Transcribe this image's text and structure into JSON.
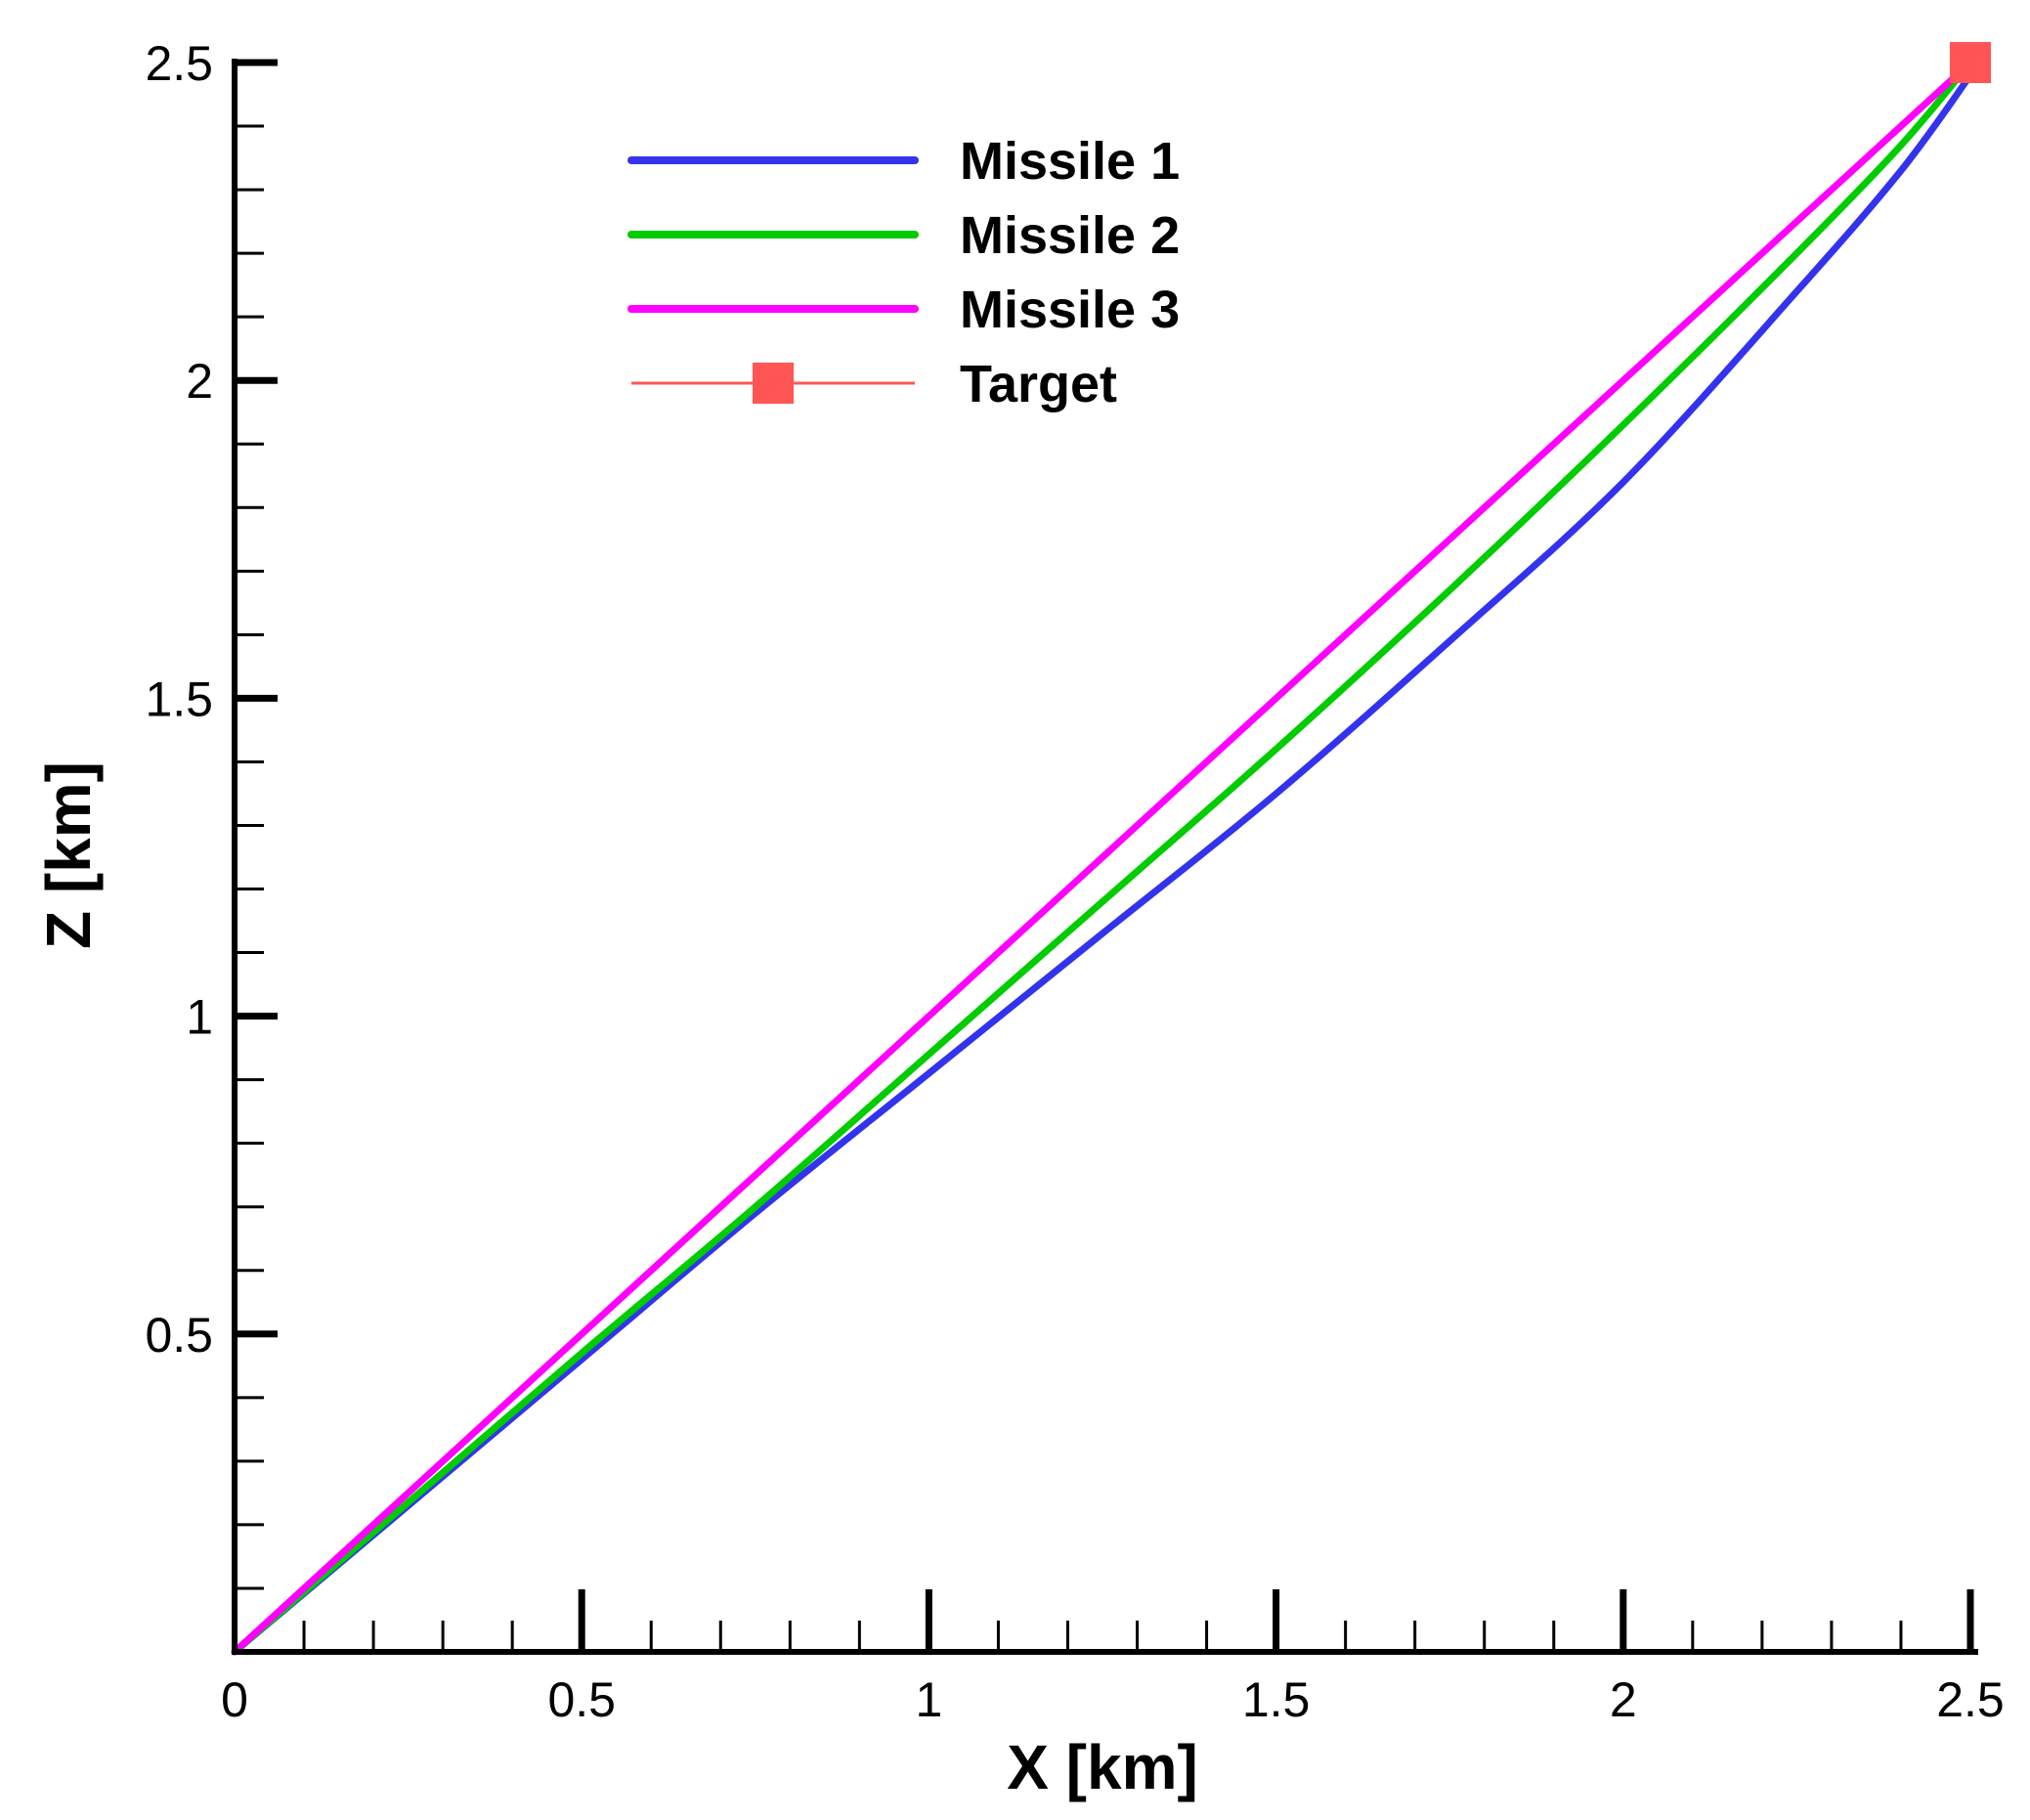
{
  "chart_data": {
    "type": "line",
    "title": "",
    "xlabel": "X [km]",
    "ylabel": "Z [km]",
    "xlim": [
      0,
      2.5
    ],
    "ylim": [
      0,
      2.5
    ],
    "grid": false,
    "legend_position": "top-center",
    "x_ticks": [
      {
        "value": 0,
        "label": "0"
      },
      {
        "value": 0.5,
        "label": "0.5"
      },
      {
        "value": 1,
        "label": "1"
      },
      {
        "value": 1.5,
        "label": "1.5"
      },
      {
        "value": 2,
        "label": "2"
      },
      {
        "value": 2.5,
        "label": "2.5"
      }
    ],
    "y_ticks": [
      {
        "value": 0.5,
        "label": "0.5"
      },
      {
        "value": 1,
        "label": "1"
      },
      {
        "value": 1.5,
        "label": "1.5"
      },
      {
        "value": 2,
        "label": "2"
      },
      {
        "value": 2.5,
        "label": "2.5"
      }
    ],
    "series": [
      {
        "name": "Missile 1",
        "color": "#3333ee",
        "x": [
          0,
          0.25,
          0.5,
          0.75,
          1.0,
          1.25,
          1.5,
          1.75,
          2.0,
          2.25,
          2.4,
          2.5
        ],
        "y": [
          0,
          0.23,
          0.46,
          0.69,
          0.91,
          1.13,
          1.35,
          1.59,
          1.84,
          2.14,
          2.33,
          2.48
        ]
      },
      {
        "name": "Missile 2",
        "color": "#00cc00",
        "x": [
          0,
          0.25,
          0.5,
          0.75,
          1.0,
          1.25,
          1.5,
          1.75,
          2.0,
          2.25,
          2.4,
          2.5
        ],
        "y": [
          0,
          0.235,
          0.47,
          0.7,
          0.94,
          1.18,
          1.42,
          1.67,
          1.93,
          2.2,
          2.37,
          2.5
        ]
      },
      {
        "name": "Missile 3",
        "color": "#ff00ff",
        "x": [
          0,
          0.25,
          0.5,
          0.75,
          1.0,
          1.25,
          1.5,
          1.75,
          2.0,
          2.25,
          2.4,
          2.5
        ],
        "y": [
          0,
          0.25,
          0.5,
          0.75,
          1.0,
          1.25,
          1.5,
          1.75,
          2.0,
          2.25,
          2.4,
          2.5
        ]
      }
    ],
    "target": {
      "name": "Target",
      "color": "#ff5555",
      "x": 2.5,
      "y": 2.5
    }
  }
}
